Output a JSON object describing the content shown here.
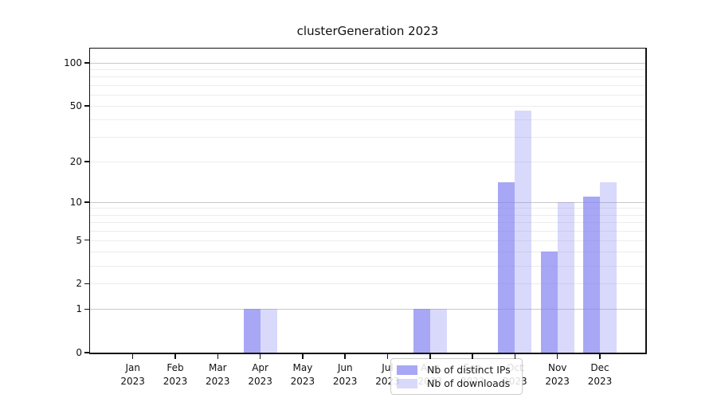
{
  "title": "clusterGeneration 2023",
  "chart_data": {
    "type": "bar",
    "title": "clusterGeneration 2023",
    "categories": [
      "Jan",
      "Feb",
      "Mar",
      "Apr",
      "May",
      "Jun",
      "Jul",
      "Aug",
      "Sep",
      "Oct",
      "Nov",
      "Dec"
    ],
    "category_year": "2023",
    "series": [
      {
        "name": "Nb of distinct IPs",
        "color": "rgba(130,130,242,0.7)",
        "values": [
          0,
          0,
          0,
          1,
          0,
          0,
          0,
          1,
          0,
          14,
          4,
          11
        ]
      },
      {
        "name": "Nb of downloads",
        "color": "rgba(130,130,242,0.3)",
        "values": [
          0,
          0,
          0,
          1,
          0,
          0,
          0,
          1,
          0,
          46,
          10,
          14
        ]
      }
    ],
    "yaxis": {
      "scale": "symlog",
      "ticks": [
        0,
        1,
        2,
        5,
        10,
        20,
        50,
        100
      ],
      "major_gridlines": [
        1,
        10,
        100
      ],
      "minor_gridlines": [
        2,
        3,
        4,
        5,
        6,
        7,
        8,
        9,
        20,
        30,
        40,
        50,
        60,
        70,
        80,
        90
      ],
      "range": [
        0,
        126
      ]
    },
    "xaxis": {
      "label_format": "month over year"
    },
    "legend": {
      "position": "inside-bottom-center",
      "items": [
        "Nb of distinct IPs",
        "Nb of downloads"
      ]
    },
    "grid": true
  },
  "colors": {
    "bar_dark": "rgba(130,130,242,0.7)",
    "bar_light": "rgba(130,130,242,0.3)",
    "major_grid": "#c9c9c9",
    "minor_grid": "#ececec",
    "axis": "#111111",
    "text": "#1a1a1a",
    "legend_border": "#cccccc",
    "legend_bg": "rgba(255,255,255,0.85)"
  }
}
